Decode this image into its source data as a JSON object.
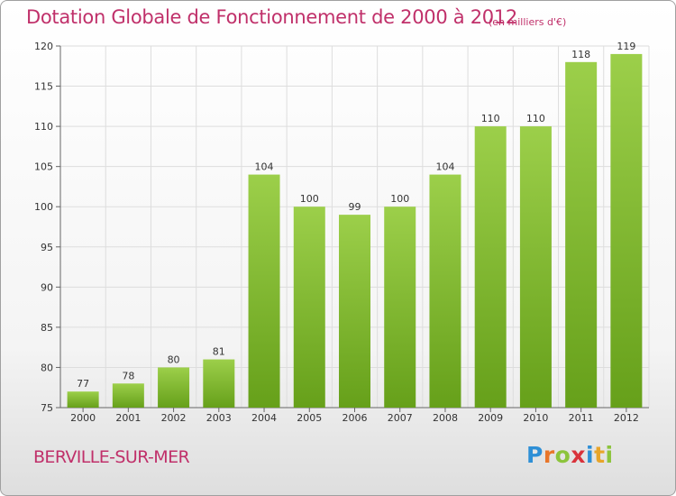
{
  "chart_data": {
    "type": "bar",
    "title": "Dotation Globale de Fonctionnement de 2000 à 2012",
    "subtitle": "(en milliers d'€)",
    "xlabel": "",
    "ylabel": "",
    "categories": [
      "2000",
      "2001",
      "2002",
      "2003",
      "2004",
      "2005",
      "2006",
      "2007",
      "2008",
      "2009",
      "2010",
      "2011",
      "2012"
    ],
    "values": [
      77,
      78,
      80,
      81,
      104,
      100,
      99,
      100,
      104,
      110,
      110,
      118,
      119
    ],
    "ylim": [
      75,
      120
    ],
    "yticks": [
      75,
      80,
      85,
      90,
      95,
      100,
      105,
      110,
      115,
      120
    ],
    "grid": true,
    "bar_color_top": "#9ccf4a",
    "bar_color_bottom": "#66a01a",
    "data_labels": true
  },
  "footer": {
    "commune": "BERVILLE-SUR-MER",
    "logo_letters": [
      {
        "char": "P",
        "color": "#2e8fd6"
      },
      {
        "char": "r",
        "color": "#e8762a"
      },
      {
        "char": "o",
        "color": "#8cc43c"
      },
      {
        "char": "x",
        "color": "#d9323b"
      },
      {
        "char": "i",
        "color": "#2e8fd6"
      },
      {
        "char": "t",
        "color": "#e8a52a"
      },
      {
        "char": "i",
        "color": "#8cc43c"
      }
    ]
  },
  "colors": {
    "title": "#c0306a",
    "grid": "#dddddd"
  }
}
